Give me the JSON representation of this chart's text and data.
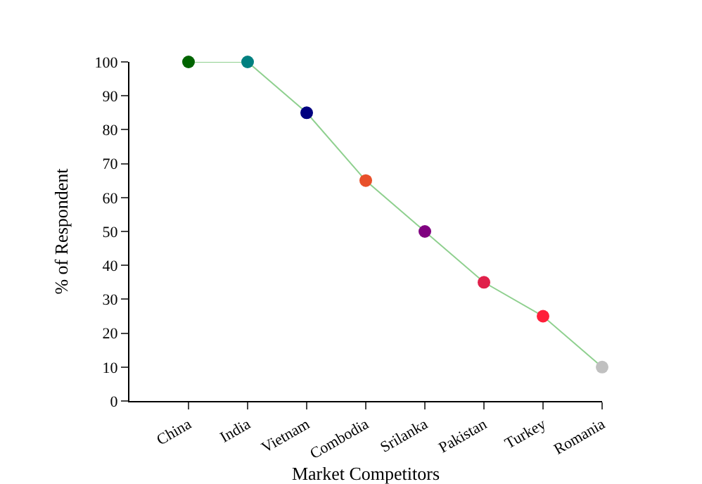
{
  "chart_data": {
    "type": "line",
    "xlabel": "Market Competitors",
    "ylabel": "% of Respondent",
    "categories": [
      "China",
      "India",
      "Vietnam",
      "Combodia",
      "Srilanka",
      "Pakistan",
      "Turkey",
      "Romania"
    ],
    "series": [
      {
        "color": "#8fd08f",
        "values": [
          100,
          100,
          85,
          65,
          50,
          35,
          25,
          10
        ],
        "colors": [
          "#006400",
          "#008080",
          "#000080",
          "#e8502a",
          "#800080",
          "#e0204a",
          "#ff1f3a",
          "#c0c0c0"
        ]
      }
    ],
    "ylim": [
      0,
      100
    ],
    "yticks": [
      0,
      10,
      20,
      30,
      40,
      50,
      60,
      70,
      80,
      90,
      100
    ],
    "legend": false,
    "marker": "circle",
    "line_style": "solid"
  }
}
